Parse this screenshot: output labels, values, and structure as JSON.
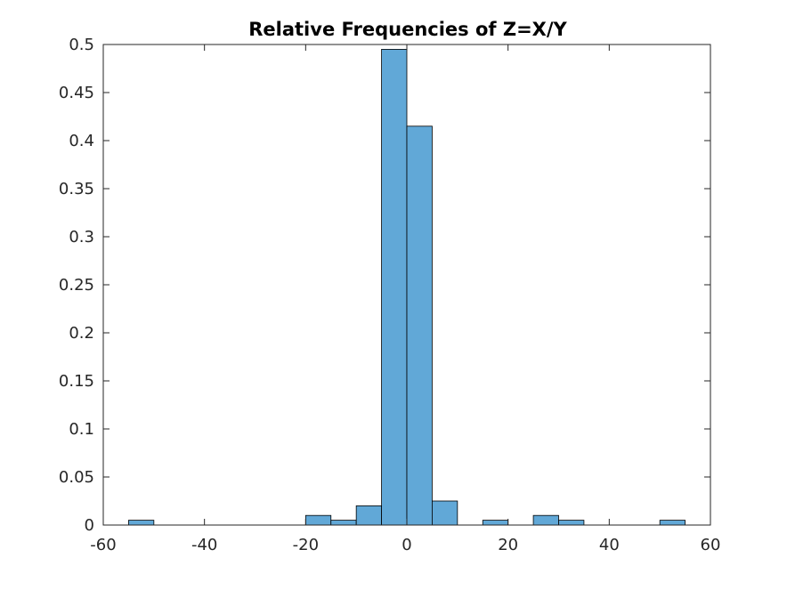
{
  "chart_data": {
    "type": "bar",
    "title": "Relative Frequencies of Z=X/Y",
    "xlabel": "",
    "ylabel": "",
    "xlim": [
      -60,
      60
    ],
    "ylim": [
      0,
      0.5
    ],
    "xticks": [
      -60,
      -40,
      -20,
      0,
      20,
      40,
      60
    ],
    "xtick_labels": [
      "-60",
      "-40",
      "-20",
      "0",
      "20",
      "40",
      "60"
    ],
    "yticks": [
      0,
      0.05,
      0.1,
      0.15,
      0.2,
      0.25,
      0.3,
      0.35,
      0.4,
      0.45,
      0.5
    ],
    "ytick_labels": [
      "0",
      "0.05",
      "0.1",
      "0.15",
      "0.2",
      "0.25",
      "0.3",
      "0.35",
      "0.4",
      "0.45",
      "0.5"
    ],
    "grid": false,
    "bin_width": 5,
    "bin_edges": [
      -55,
      -50,
      -45,
      -40,
      -35,
      -30,
      -25,
      -20,
      -15,
      -10,
      -5,
      0,
      5,
      10,
      15,
      20,
      25,
      30,
      35,
      40,
      45,
      50,
      55
    ],
    "values": [
      0.005,
      0,
      0,
      0,
      0,
      0,
      0,
      0.01,
      0.005,
      0.02,
      0.495,
      0.415,
      0.025,
      0,
      0.005,
      0,
      0.01,
      0.005,
      0,
      0,
      0,
      0.005
    ],
    "colors": {
      "bar_fill": "#61a8d7",
      "bar_edge": "#000000",
      "axis": "#262626"
    }
  }
}
